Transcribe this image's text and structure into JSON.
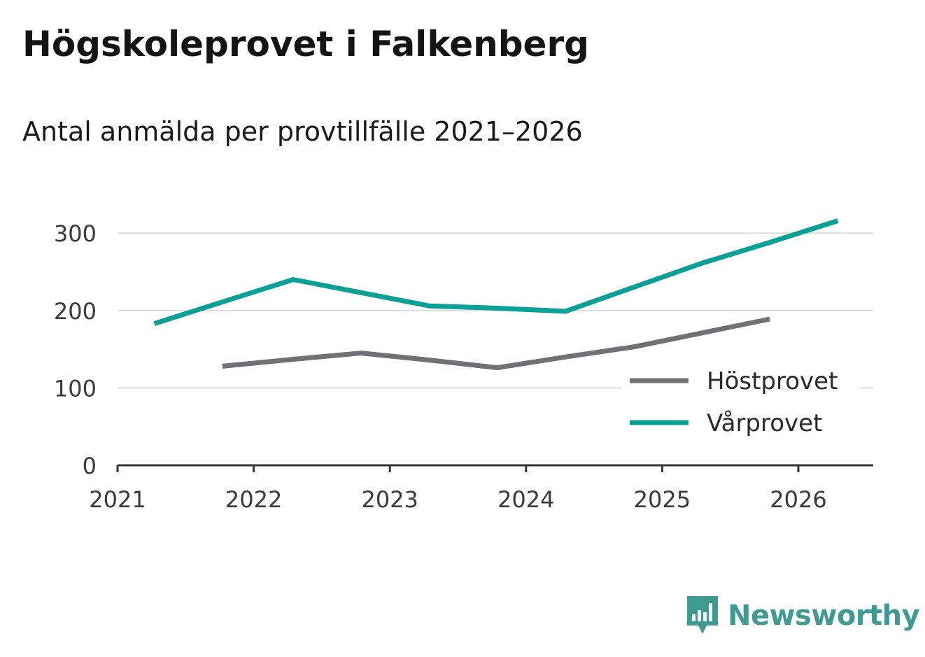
{
  "header": {
    "title": "Högskoleprovet i Falkenberg",
    "subtitle": "Antal anmälda per provtillfälle 2021–2026"
  },
  "brand": {
    "name": "Newsworthy",
    "icon": "newsworthy-logo-icon",
    "color": "#3f9a92"
  },
  "chart_data": {
    "type": "line",
    "title": "Högskoleprovet i Falkenberg",
    "subtitle": "Antal anmälda per provtillfälle 2021–2026",
    "xlabel": "",
    "ylabel": "",
    "xlim": [
      2021,
      2026.55
    ],
    "ylim": [
      0,
      330
    ],
    "x_ticks": [
      "2021",
      "2022",
      "2023",
      "2024",
      "2025",
      "2026"
    ],
    "y_ticks": [
      "0",
      "100",
      "200",
      "300"
    ],
    "grid": true,
    "legend_position": "bottom-right",
    "series": [
      {
        "name": "Höstprovet",
        "color": "#717075",
        "x": [
          2021.77,
          2022.29,
          2022.79,
          2023.29,
          2023.79,
          2024.29,
          2024.79,
          2025.29,
          2025.79
        ],
        "values": [
          128,
          137,
          145,
          136,
          126,
          140,
          153,
          171,
          189
        ]
      },
      {
        "name": "Vårprovet",
        "color": "#0aa096",
        "x": [
          2021.27,
          2021.77,
          2022.29,
          2022.79,
          2023.29,
          2023.79,
          2024.29,
          2024.79,
          2025.29,
          2025.79,
          2026.29
        ],
        "values": [
          183,
          211,
          240,
          223,
          206,
          203,
          199,
          230,
          261,
          288,
          316
        ]
      }
    ]
  }
}
